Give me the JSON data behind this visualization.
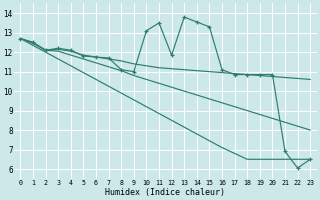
{
  "xlabel": "Humidex (Indice chaleur)",
  "bg_color": "#cce8e8",
  "grid_color": "#ffffff",
  "line_color": "#2e7d6e",
  "xlim": [
    -0.5,
    23.5
  ],
  "ylim": [
    5.5,
    14.5
  ],
  "xticks": [
    0,
    1,
    2,
    3,
    4,
    5,
    6,
    7,
    8,
    9,
    10,
    11,
    12,
    13,
    14,
    15,
    16,
    17,
    18,
    19,
    20,
    21,
    22,
    23
  ],
  "yticks": [
    6,
    7,
    8,
    9,
    10,
    11,
    12,
    13,
    14
  ],
  "lines": [
    {
      "x": [
        0,
        1,
        2,
        3,
        4,
        5,
        6,
        7,
        8,
        9,
        10,
        11,
        12,
        13,
        14,
        15,
        16,
        17,
        18,
        19,
        20,
        21,
        22,
        23
      ],
      "y": [
        12.7,
        12.5,
        12.1,
        12.2,
        12.1,
        11.8,
        11.75,
        11.7,
        11.1,
        11.0,
        13.1,
        13.5,
        11.85,
        13.8,
        13.55,
        13.3,
        11.1,
        10.85,
        10.85,
        10.85,
        10.85,
        6.9,
        6.05,
        6.5
      ],
      "marker": true
    },
    {
      "x": [
        0,
        1,
        2,
        3,
        4,
        5,
        6,
        7,
        8,
        9,
        10,
        11,
        12,
        13,
        14,
        15,
        16,
        17,
        18,
        19,
        20,
        21,
        22,
        23
      ],
      "y": [
        12.7,
        12.5,
        12.1,
        12.15,
        12.05,
        11.85,
        11.75,
        11.65,
        11.55,
        11.4,
        11.3,
        11.2,
        11.15,
        11.1,
        11.05,
        11.0,
        10.95,
        10.9,
        10.85,
        10.8,
        10.75,
        10.7,
        10.65,
        10.6
      ],
      "marker": false
    },
    {
      "x": [
        0,
        1,
        2,
        3,
        4,
        5,
        6,
        7,
        8,
        9,
        10,
        11,
        12,
        13,
        14,
        15,
        16,
        17,
        18,
        19,
        20,
        21,
        22,
        23
      ],
      "y": [
        12.7,
        12.45,
        12.1,
        12.05,
        11.85,
        11.65,
        11.45,
        11.25,
        11.05,
        10.8,
        10.6,
        10.4,
        10.2,
        10.0,
        9.8,
        9.6,
        9.4,
        9.2,
        9.0,
        8.8,
        8.6,
        8.4,
        8.2,
        8.0
      ],
      "marker": false
    },
    {
      "x": [
        0,
        1,
        2,
        3,
        4,
        5,
        6,
        7,
        8,
        9,
        10,
        11,
        12,
        13,
        14,
        15,
        16,
        17,
        18,
        19,
        20,
        21,
        22,
        23
      ],
      "y": [
        12.7,
        12.35,
        12.0,
        11.65,
        11.3,
        10.95,
        10.6,
        10.25,
        9.9,
        9.55,
        9.2,
        8.85,
        8.5,
        8.15,
        7.8,
        7.45,
        7.1,
        6.8,
        6.5,
        6.5,
        6.5,
        6.5,
        6.5,
        6.5
      ],
      "marker": false
    }
  ]
}
